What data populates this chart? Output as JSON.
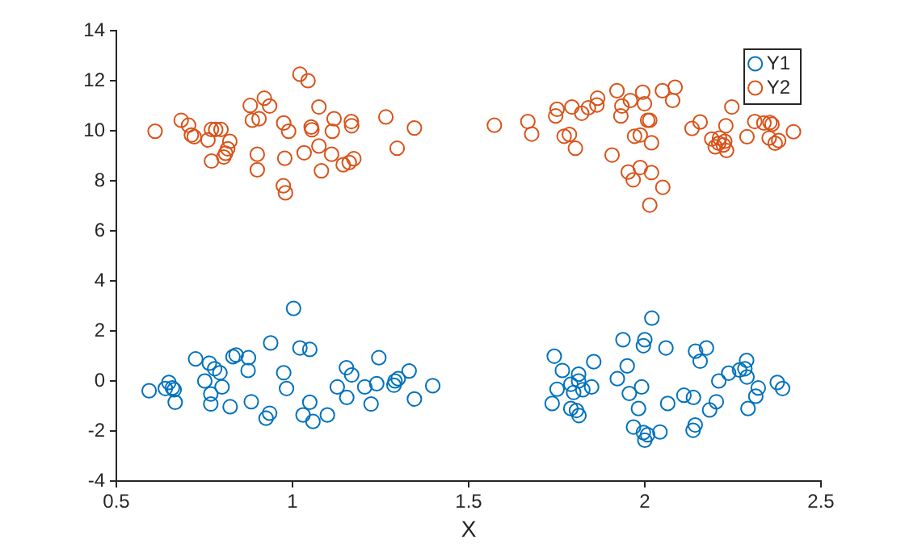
{
  "chart_data": {
    "type": "scatter",
    "xlabel": "X",
    "xlim": [
      0.5,
      2.5
    ],
    "xticks": [
      0.5,
      1,
      1.5,
      2,
      2.5
    ],
    "ylim": [
      -4,
      14
    ],
    "yticks": [
      -4,
      -2,
      0,
      2,
      4,
      6,
      8,
      10,
      12,
      14
    ],
    "grid": false,
    "legend": "top right",
    "marker": "circle",
    "series": [
      {
        "name": "Y1",
        "color": "#0072bd",
        "x": [
          0.593,
          0.639,
          0.649,
          0.659,
          0.664,
          0.667,
          0.725,
          0.751,
          0.764,
          0.768,
          0.768,
          0.779,
          0.794,
          0.8,
          0.823,
          0.831,
          0.84,
          0.875,
          0.874,
          0.883,
          0.925,
          0.935,
          0.938,
          0.975,
          0.983,
          1.003,
          1.021,
          1.049,
          1.049,
          1.03,
          1.058,
          1.099,
          1.127,
          1.153,
          1.154,
          1.168,
          1.205,
          1.223,
          1.239,
          1.245,
          1.288,
          1.291,
          1.3,
          1.331,
          1.346,
          1.398,
          1.743,
          1.766,
          1.751,
          1.737,
          1.79,
          1.798,
          1.812,
          1.812,
          1.824,
          1.849,
          1.79,
          1.806,
          1.813,
          1.855,
          1.938,
          1.95,
          1.922,
          1.956,
          1.991,
          1.982,
          2.0,
          1.996,
          2.02,
          2.06,
          2.065,
          1.968,
          1.996,
          2.008,
          2.0,
          2.043,
          2.111,
          2.138,
          2.144,
          2.157,
          2.175,
          2.203,
          2.184,
          2.143,
          2.137,
          2.21,
          2.238,
          2.269,
          2.289,
          2.284,
          2.29,
          2.322,
          2.315,
          2.293,
          2.376,
          2.391
        ],
        "values": [
          -0.39,
          -0.3,
          -0.06,
          -0.28,
          -0.35,
          -0.85,
          0.88,
          0.0,
          0.71,
          -0.52,
          -0.92,
          0.49,
          0.33,
          -0.24,
          -1.03,
          0.97,
          1.04,
          0.93,
          0.42,
          -0.83,
          -1.49,
          -1.29,
          1.52,
          0.33,
          -0.3,
          2.9,
          1.32,
          1.26,
          -0.85,
          -1.36,
          -1.62,
          -1.36,
          -0.24,
          0.53,
          -0.66,
          0.24,
          -0.24,
          -0.92,
          -0.11,
          0.93,
          -0.17,
          0.0,
          0.09,
          0.4,
          -0.72,
          -0.19,
          0.99,
          0.42,
          -0.33,
          -0.9,
          -0.13,
          -0.46,
          0.27,
          0.0,
          -0.35,
          -0.24,
          -1.1,
          -1.18,
          -1.38,
          0.77,
          1.65,
          0.6,
          0.09,
          -0.5,
          -0.24,
          -1.1,
          1.65,
          1.41,
          2.51,
          1.32,
          -0.9,
          -1.84,
          -2.06,
          -2.15,
          -2.37,
          -2.04,
          -0.57,
          -0.66,
          1.19,
          0.79,
          1.32,
          -0.83,
          -1.16,
          -1.76,
          -1.97,
          0.0,
          0.31,
          0.44,
          0.82,
          0.49,
          0.16,
          -0.28,
          -0.61,
          -1.1,
          -0.06,
          -0.3
        ]
      },
      {
        "name": "Y2",
        "color": "#d95319",
        "x": [
          0.61,
          0.684,
          0.705,
          0.713,
          0.721,
          0.76,
          0.77,
          0.782,
          0.797,
          0.822,
          0.816,
          0.81,
          0.805,
          0.77,
          0.88,
          0.92,
          0.935,
          0.886,
          0.905,
          0.9,
          0.9,
          0.975,
          0.989,
          0.978,
          0.974,
          0.98,
          1.021,
          1.044,
          1.075,
          1.053,
          1.055,
          1.033,
          1.075,
          1.082,
          1.118,
          1.113,
          1.111,
          1.144,
          1.167,
          1.168,
          1.174,
          1.161,
          1.265,
          1.297,
          1.346,
          1.573,
          1.668,
          1.679,
          1.751,
          1.747,
          1.793,
          1.821,
          1.84,
          1.866,
          1.864,
          1.921,
          1.959,
          1.935,
          1.932,
          1.994,
          1.999,
          1.771,
          1.786,
          1.803,
          1.907,
          2.008,
          2.014,
          1.971,
          1.987,
          2.019,
          2.05,
          2.086,
          2.079,
          1.953,
          1.967,
          1.987,
          2.019,
          2.051,
          2.014,
          2.134,
          2.157,
          2.19,
          2.2,
          2.212,
          2.23,
          2.227,
          2.232,
          2.247,
          2.29,
          2.312,
          2.338,
          2.355,
          2.361,
          2.353,
          2.37,
          2.38,
          2.422,
          2.223,
          2.21
        ],
        "values": [
          9.98,
          10.42,
          10.22,
          9.83,
          9.76,
          9.63,
          10.05,
          10.05,
          10.05,
          9.58,
          9.28,
          9.1,
          8.95,
          8.79,
          11.01,
          11.3,
          10.99,
          10.42,
          10.48,
          9.06,
          8.44,
          10.31,
          9.98,
          8.9,
          7.8,
          7.52,
          12.26,
          12.0,
          10.95,
          10.15,
          10.04,
          9.12,
          9.39,
          8.4,
          10.48,
          9.98,
          9.06,
          8.64,
          10.37,
          10.2,
          8.88,
          8.73,
          10.55,
          9.3,
          10.11,
          10.22,
          10.37,
          9.87,
          10.86,
          10.59,
          10.95,
          10.7,
          10.92,
          11.3,
          11.03,
          11.6,
          11.21,
          10.99,
          10.59,
          11.54,
          11.08,
          9.78,
          9.85,
          9.3,
          9.03,
          10.42,
          10.42,
          9.78,
          9.83,
          9.52,
          11.6,
          11.74,
          11.21,
          8.35,
          8.04,
          8.53,
          8.33,
          7.74,
          7.03,
          10.09,
          10.35,
          9.67,
          9.36,
          9.71,
          10.2,
          9.58,
          9.21,
          10.95,
          9.76,
          10.37,
          10.31,
          10.33,
          10.26,
          9.71,
          9.5,
          9.61,
          9.96,
          9.43,
          9.5
        ]
      }
    ]
  }
}
